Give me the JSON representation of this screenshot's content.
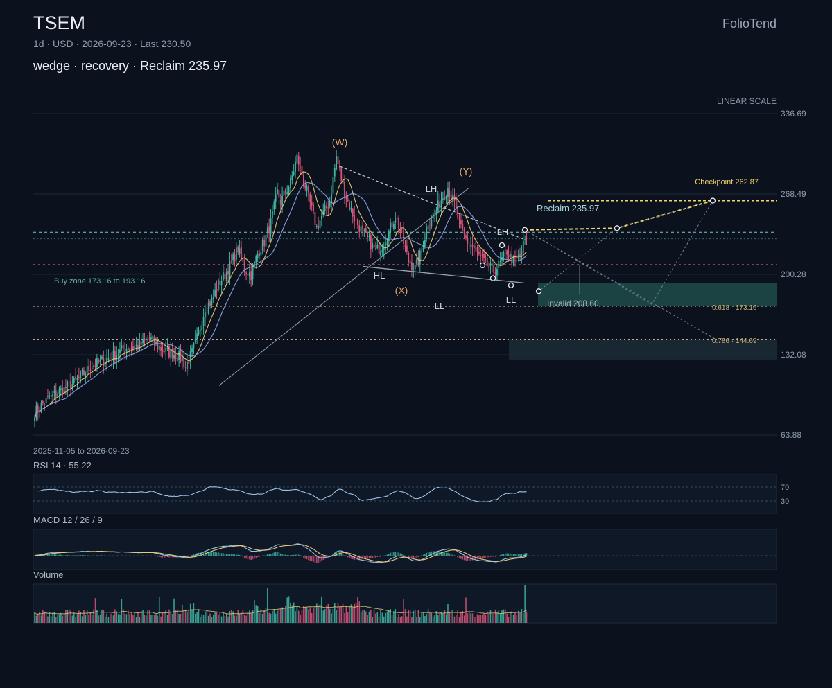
{
  "header": {
    "ticker": "TSEM",
    "brand": "FolioTend",
    "subtitle": "1d · USD · 2026-09-23 · Last 230.50",
    "headline": "wedge · recovery · Reclaim 235.97",
    "scale_label": "LINEAR SCALE",
    "date_range": "2025-11-05 to 2026-09-23"
  },
  "panels": {
    "rsi": "RSI 14 · 55.22",
    "macd": "MACD 12 / 26 / 9",
    "volume": "Volume"
  },
  "colors": {
    "background": "#0b121d",
    "up": "#3fb6a2",
    "down": "#d9567a",
    "ma_fast": "#e8c87a",
    "ma_slow": "#8fa6e8",
    "projection": "#f3d36b",
    "zone": "#2a6b62",
    "rsi_line": "#9dc6ef",
    "macd_line": "#9dc6ef",
    "signal_line": "#e8c87a"
  },
  "chart_data": {
    "type": "candlestick",
    "y_scale": "linear",
    "ylim": [
      63.88,
      336.69
    ],
    "y_ticks": [
      "336.69",
      "268.49",
      "200.28",
      "132.08",
      "63.88"
    ],
    "start_date": "2025-11-05",
    "end_date": "2026-09-23",
    "last_close": 230.5,
    "price_path": [
      [
        0,
        83
      ],
      [
        6,
        92
      ],
      [
        14,
        100
      ],
      [
        24,
        108
      ],
      [
        34,
        122
      ],
      [
        46,
        130
      ],
      [
        56,
        138
      ],
      [
        64,
        140
      ],
      [
        70,
        146
      ],
      [
        78,
        136
      ],
      [
        86,
        132
      ],
      [
        90,
        128
      ],
      [
        92,
        122
      ],
      [
        96,
        134
      ],
      [
        100,
        150
      ],
      [
        104,
        172
      ],
      [
        108,
        178
      ],
      [
        112,
        192
      ],
      [
        116,
        200
      ],
      [
        120,
        210
      ],
      [
        124,
        222
      ],
      [
        128,
        205
      ],
      [
        132,
        200
      ],
      [
        136,
        218
      ],
      [
        140,
        228
      ],
      [
        144,
        244
      ],
      [
        148,
        270
      ],
      [
        150,
        262
      ],
      [
        156,
        278
      ],
      [
        160,
        300
      ],
      [
        164,
        280
      ],
      [
        168,
        260
      ],
      [
        172,
        240
      ],
      [
        176,
        252
      ],
      [
        180,
        262
      ],
      [
        184,
        300
      ],
      [
        188,
        275
      ],
      [
        192,
        258
      ],
      [
        196,
        245
      ],
      [
        200,
        236
      ],
      [
        204,
        228
      ],
      [
        208,
        220
      ],
      [
        212,
        225
      ],
      [
        216,
        236
      ],
      [
        220,
        250
      ],
      [
        224,
        232
      ],
      [
        228,
        212
      ],
      [
        232,
        205
      ],
      [
        236,
        220
      ],
      [
        240,
        245
      ],
      [
        244,
        252
      ],
      [
        248,
        264
      ],
      [
        252,
        274
      ],
      [
        256,
        260
      ],
      [
        260,
        238
      ],
      [
        264,
        228
      ],
      [
        268,
        222
      ],
      [
        272,
        214
      ],
      [
        276,
        208
      ],
      [
        280,
        203
      ],
      [
        284,
        210
      ],
      [
        288,
        220
      ],
      [
        292,
        210
      ],
      [
        296,
        216
      ],
      [
        300,
        234
      ]
    ],
    "price_levels": [
      {
        "label": "Reclaim 235.97",
        "value": 235.97
      },
      {
        "label": "Invalid 208.60",
        "value": 208.6
      },
      {
        "label": "0.618 · 173.16",
        "value": 173.16
      },
      {
        "label": "0.786 · 144.69",
        "value": 144.69
      }
    ],
    "buy_zone": {
      "label": "Buy zone 173.16 to 193.16",
      "low": 173.16,
      "high": 193.16
    },
    "checkpoint": {
      "label": "Checkpoint 262.87",
      "value": 262.87
    },
    "wave_labels": [
      "(W)",
      "(X)",
      "(Y)"
    ],
    "structure_labels": [
      "HL",
      "LH",
      "LH",
      "LL",
      "LL"
    ],
    "rsi": {
      "period": 14,
      "last": 55.22,
      "levels": [
        70,
        30
      ]
    },
    "macd": {
      "fast": 12,
      "slow": 26,
      "signal": 9
    }
  }
}
